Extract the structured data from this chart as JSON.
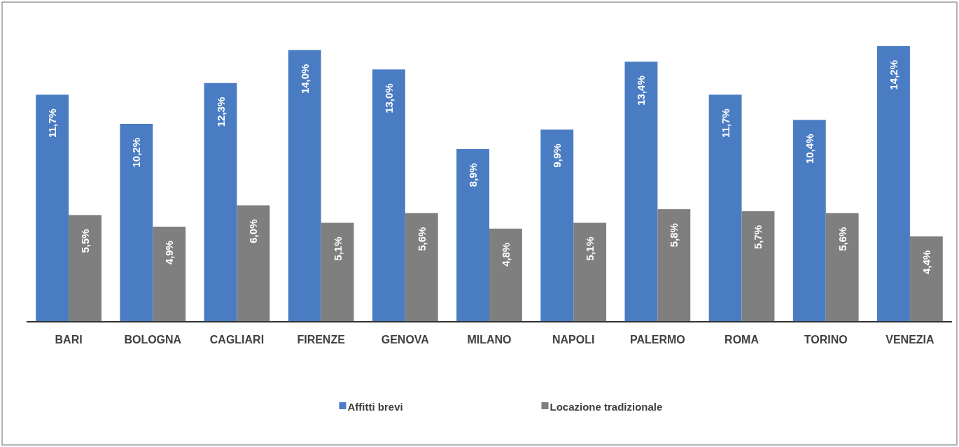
{
  "chart_data": {
    "type": "bar",
    "categories": [
      "BARI",
      "BOLOGNA",
      "CAGLIARI",
      "FIRENZE",
      "GENOVA",
      "MILANO",
      "NAPOLI",
      "PALERMO",
      "ROMA",
      "TORINO",
      "VENEZIA"
    ],
    "series": [
      {
        "name": "Affitti brevi",
        "color": "#4a7cc3",
        "values": [
          11.7,
          10.2,
          12.3,
          14.0,
          13.0,
          8.9,
          9.9,
          13.4,
          11.7,
          10.4,
          14.2
        ],
        "value_labels": [
          "11,7%",
          "10,2%",
          "12,3%",
          "14,0%",
          "13,0%",
          "8,9%",
          "9,9%",
          "13,4%",
          "11,7%",
          "10,4%",
          "14,2%"
        ]
      },
      {
        "name": "Locazione tradizionale",
        "color": "#7f7f7f",
        "values": [
          5.5,
          4.9,
          6.0,
          5.1,
          5.6,
          4.8,
          5.1,
          5.8,
          5.7,
          5.6,
          4.4
        ],
        "value_labels": [
          "5,5%",
          "4,9%",
          "6,0%",
          "5,1%",
          "5,6%",
          "4,8%",
          "5,1%",
          "5,8%",
          "5,7%",
          "5,6%",
          "4,4%"
        ]
      }
    ],
    "legend": "bottom"
  }
}
